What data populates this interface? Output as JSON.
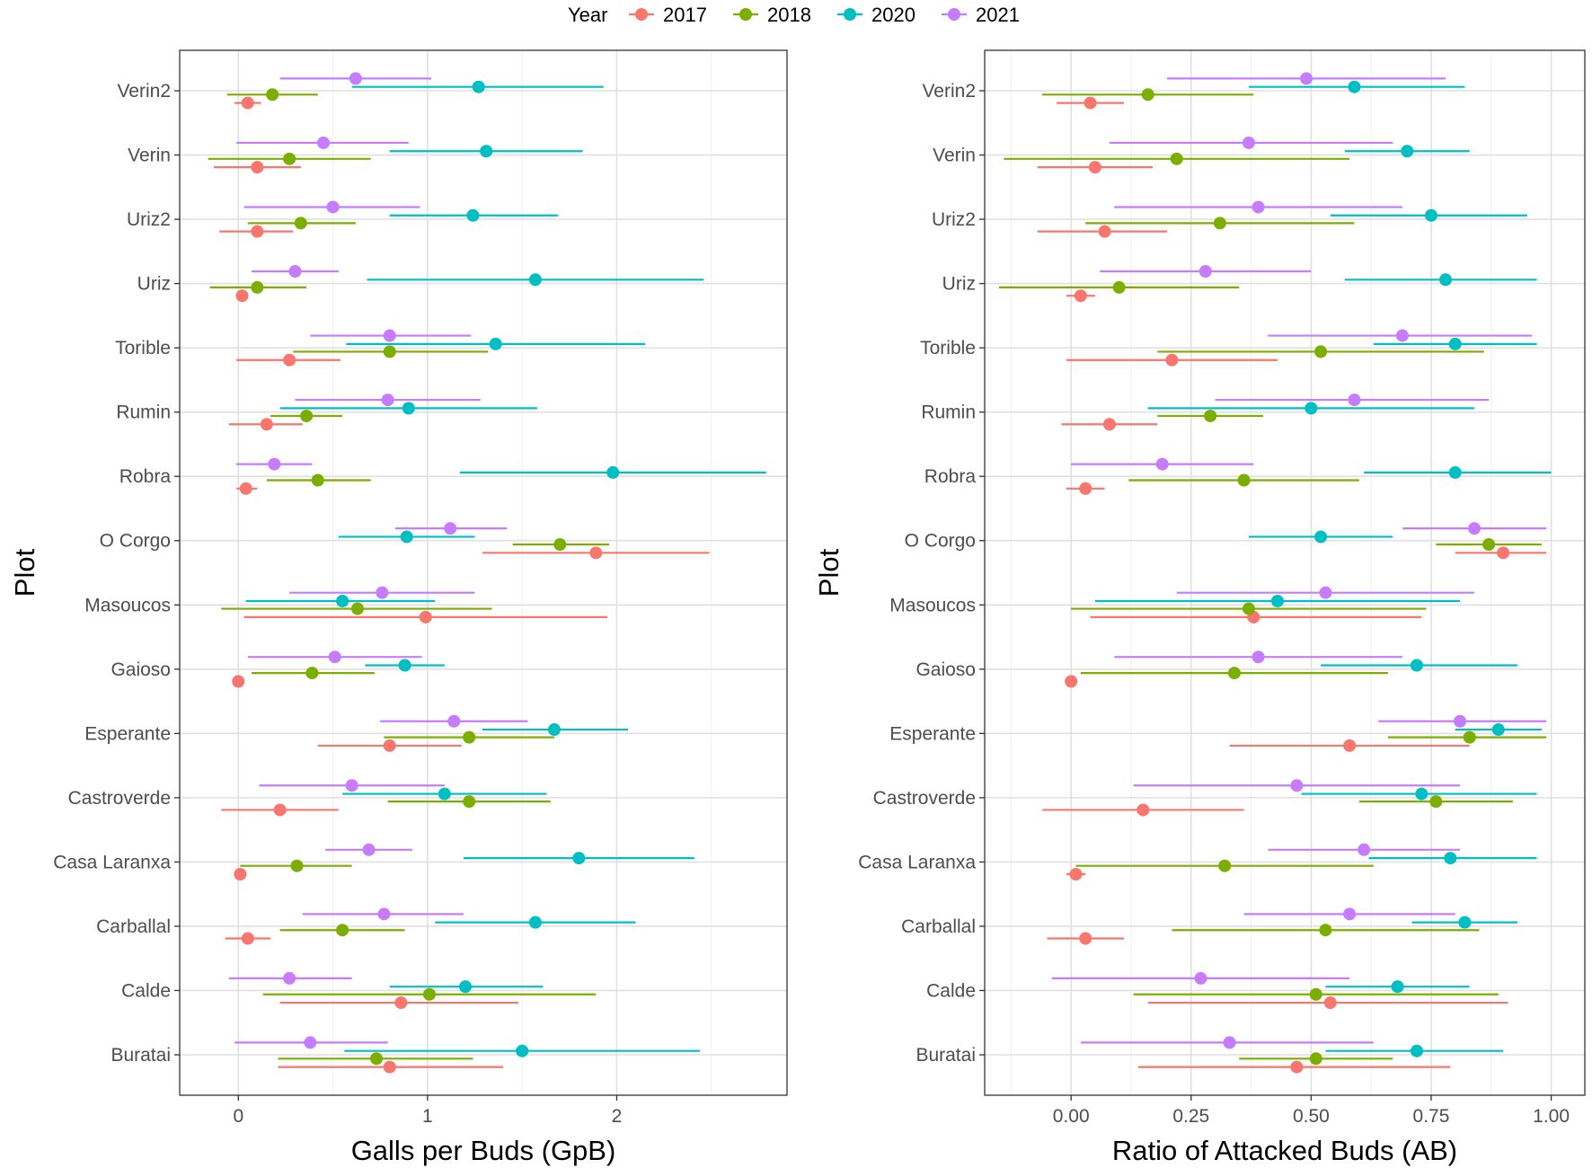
{
  "legend": {
    "title": "Year",
    "items": [
      {
        "label": "2017",
        "color": "#F8766D"
      },
      {
        "label": "2018",
        "color": "#7CAE00"
      },
      {
        "label": "2020",
        "color": "#00BFC4"
      },
      {
        "label": "2021",
        "color": "#C77CFF"
      }
    ]
  },
  "chart_data": [
    {
      "type": "scatter",
      "subtype": "dot-with-horizontal-error-bars",
      "title": "",
      "xlabel": "Galls per Buds (GpB)",
      "ylabel": "Plot",
      "xlim": [
        -0.31,
        2.9
      ],
      "xticks": [
        0,
        1,
        2
      ],
      "xtick_labels": [
        "0",
        "1",
        "2"
      ],
      "grid": true,
      "categories": [
        "Verin2",
        "Verin",
        "Uriz2",
        "Uriz",
        "Torible",
        "Rumin",
        "Robra",
        "O Corgo",
        "Masoucos",
        "Gaioso",
        "Esperante",
        "Castroverde",
        "Casa Laranxa",
        "Carballal",
        "Calde",
        "Buratai"
      ],
      "series": [
        {
          "name": "2017",
          "color": "#F8766D",
          "mean": [
            0.05,
            0.1,
            0.1,
            0.02,
            0.27,
            0.15,
            0.04,
            1.89,
            0.99,
            0.0,
            0.8,
            0.22,
            0.01,
            0.05,
            0.86,
            0.8
          ],
          "lower": [
            -0.02,
            -0.13,
            -0.1,
            0.01,
            -0.01,
            -0.05,
            -0.01,
            1.29,
            0.03,
            0.0,
            0.42,
            -0.09,
            0.01,
            -0.07,
            0.22,
            0.21
          ],
          "upper": [
            0.12,
            0.33,
            0.29,
            0.02,
            0.54,
            0.34,
            0.1,
            2.49,
            1.95,
            0.0,
            1.18,
            0.53,
            0.01,
            0.17,
            1.48,
            1.4
          ]
        },
        {
          "name": "2018",
          "color": "#7CAE00",
          "mean": [
            0.18,
            0.27,
            0.33,
            0.1,
            0.8,
            0.36,
            0.42,
            1.7,
            0.63,
            0.39,
            1.22,
            1.22,
            0.31,
            0.55,
            1.01,
            0.73
          ],
          "lower": [
            -0.06,
            -0.16,
            0.05,
            -0.15,
            0.29,
            0.17,
            0.15,
            1.45,
            -0.09,
            0.07,
            0.77,
            0.79,
            0.01,
            0.22,
            0.13,
            0.21
          ],
          "upper": [
            0.42,
            0.7,
            0.62,
            0.36,
            1.32,
            0.55,
            0.7,
            1.96,
            1.34,
            0.72,
            1.67,
            1.65,
            0.6,
            0.88,
            1.89,
            1.24
          ]
        },
        {
          "name": "2020",
          "color": "#00BFC4",
          "mean": [
            1.27,
            1.31,
            1.24,
            1.57,
            1.36,
            0.9,
            1.98,
            0.89,
            0.55,
            0.88,
            1.67,
            1.09,
            1.8,
            1.57,
            1.2,
            1.5
          ],
          "lower": [
            0.6,
            0.8,
            0.8,
            0.68,
            0.57,
            0.22,
            1.17,
            0.53,
            0.04,
            0.67,
            1.29,
            0.55,
            1.19,
            1.04,
            0.8,
            0.56
          ],
          "upper": [
            1.93,
            1.82,
            1.69,
            2.46,
            2.15,
            1.58,
            2.79,
            1.25,
            1.04,
            1.09,
            2.06,
            1.63,
            2.41,
            2.1,
            1.61,
            2.44
          ]
        },
        {
          "name": "2021",
          "color": "#C77CFF",
          "mean": [
            0.62,
            0.45,
            0.5,
            0.3,
            0.8,
            0.79,
            0.19,
            1.12,
            0.76,
            0.51,
            1.14,
            0.6,
            0.69,
            0.77,
            0.27,
            0.38
          ],
          "lower": [
            0.22,
            -0.01,
            0.03,
            0.07,
            0.38,
            0.3,
            -0.01,
            0.83,
            0.27,
            0.05,
            0.75,
            0.11,
            0.46,
            0.34,
            -0.05,
            -0.02
          ],
          "upper": [
            1.02,
            0.9,
            0.96,
            0.53,
            1.23,
            1.28,
            0.39,
            1.42,
            1.25,
            0.97,
            1.53,
            1.09,
            0.92,
            1.19,
            0.6,
            0.79
          ]
        }
      ]
    },
    {
      "type": "scatter",
      "subtype": "dot-with-horizontal-error-bars",
      "title": "",
      "xlabel": "Ratio of Attacked Buds (AB)",
      "ylabel": "Plot",
      "xlim": [
        -0.18,
        1.07
      ],
      "xticks": [
        0,
        0.25,
        0.5,
        0.75,
        1.0
      ],
      "xtick_labels": [
        "0.00",
        "0.25",
        "0.50",
        "0.75",
        "1.00"
      ],
      "grid": true,
      "categories": [
        "Verin2",
        "Verin",
        "Uriz2",
        "Uriz",
        "Torible",
        "Rumin",
        "Robra",
        "O Corgo",
        "Masoucos",
        "Gaioso",
        "Esperante",
        "Castroverde",
        "Casa Laranxa",
        "Carballal",
        "Calde",
        "Buratai"
      ],
      "series": [
        {
          "name": "2017",
          "color": "#F8766D",
          "mean": [
            0.04,
            0.05,
            0.07,
            0.02,
            0.21,
            0.08,
            0.03,
            0.9,
            0.38,
            0.0,
            0.58,
            0.15,
            0.01,
            0.03,
            0.54,
            0.47
          ],
          "lower": [
            -0.03,
            -0.07,
            -0.07,
            -0.01,
            -0.01,
            -0.02,
            -0.01,
            0.8,
            0.04,
            0.0,
            0.33,
            -0.06,
            -0.01,
            -0.05,
            0.16,
            0.14
          ],
          "upper": [
            0.11,
            0.17,
            0.2,
            0.05,
            0.43,
            0.18,
            0.07,
            0.99,
            0.73,
            0.0,
            0.83,
            0.36,
            0.03,
            0.11,
            0.91,
            0.79
          ]
        },
        {
          "name": "2018",
          "color": "#7CAE00",
          "mean": [
            0.16,
            0.22,
            0.31,
            0.1,
            0.52,
            0.29,
            0.36,
            0.87,
            0.37,
            0.34,
            0.83,
            0.76,
            0.32,
            0.53,
            0.51,
            0.51
          ],
          "lower": [
            -0.06,
            -0.14,
            0.03,
            -0.15,
            0.18,
            0.18,
            0.12,
            0.76,
            0.0,
            0.02,
            0.66,
            0.6,
            0.01,
            0.21,
            0.13,
            0.35
          ],
          "upper": [
            0.38,
            0.58,
            0.59,
            0.35,
            0.86,
            0.4,
            0.6,
            0.98,
            0.74,
            0.66,
            0.99,
            0.92,
            0.63,
            0.85,
            0.89,
            0.67
          ]
        },
        {
          "name": "2020",
          "color": "#00BFC4",
          "mean": [
            0.59,
            0.7,
            0.75,
            0.78,
            0.8,
            0.5,
            0.8,
            0.52,
            0.43,
            0.72,
            0.89,
            0.73,
            0.79,
            0.82,
            0.68,
            0.72
          ],
          "lower": [
            0.37,
            0.57,
            0.54,
            0.57,
            0.63,
            0.16,
            0.61,
            0.37,
            0.05,
            0.52,
            0.8,
            0.48,
            0.62,
            0.71,
            0.53,
            0.53
          ],
          "upper": [
            0.82,
            0.83,
            0.95,
            0.97,
            0.97,
            0.84,
            1.0,
            0.67,
            0.81,
            0.93,
            0.98,
            0.97,
            0.97,
            0.93,
            0.83,
            0.9
          ]
        },
        {
          "name": "2021",
          "color": "#C77CFF",
          "mean": [
            0.49,
            0.37,
            0.39,
            0.28,
            0.69,
            0.59,
            0.19,
            0.84,
            0.53,
            0.39,
            0.81,
            0.47,
            0.61,
            0.58,
            0.27,
            0.33
          ],
          "lower": [
            0.2,
            0.08,
            0.09,
            0.06,
            0.41,
            0.3,
            0.0,
            0.69,
            0.22,
            0.09,
            0.64,
            0.13,
            0.41,
            0.36,
            -0.04,
            0.02
          ],
          "upper": [
            0.78,
            0.67,
            0.69,
            0.5,
            0.96,
            0.87,
            0.38,
            0.99,
            0.84,
            0.69,
            0.99,
            0.81,
            0.81,
            0.8,
            0.58,
            0.63
          ]
        }
      ]
    }
  ]
}
